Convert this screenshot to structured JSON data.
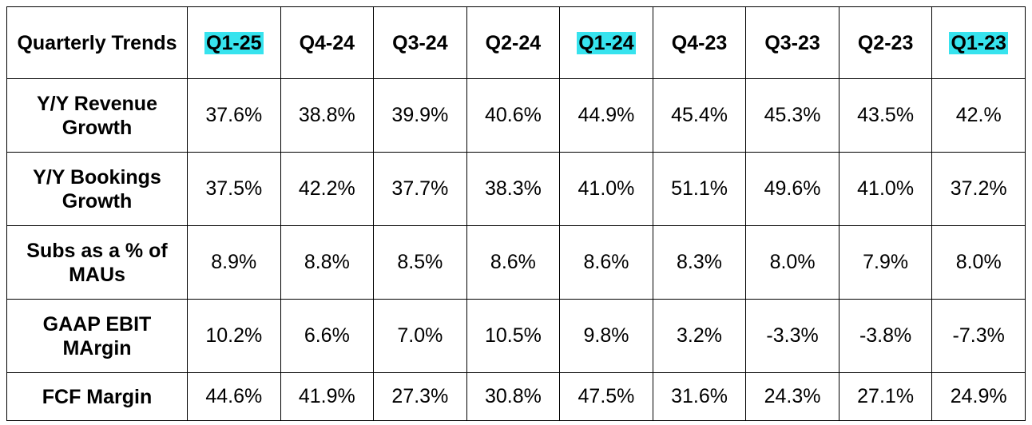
{
  "table": {
    "corner_label": "Quarterly Trends",
    "highlight_color": "#37e3ee",
    "columns": [
      {
        "label": "Q1-25",
        "highlighted": true
      },
      {
        "label": "Q4-24",
        "highlighted": false
      },
      {
        "label": "Q3-24",
        "highlighted": false
      },
      {
        "label": "Q2-24",
        "highlighted": false
      },
      {
        "label": "Q1-24",
        "highlighted": true
      },
      {
        "label": "Q4-23",
        "highlighted": false
      },
      {
        "label": "Q3-23",
        "highlighted": false
      },
      {
        "label": "Q2-23",
        "highlighted": false
      },
      {
        "label": "Q1-23",
        "highlighted": true
      }
    ],
    "rows": [
      {
        "label": "Y/Y Revenue Growth",
        "values": [
          "37.6%",
          "38.8%",
          "39.9%",
          "40.6%",
          "44.9%",
          "45.4%",
          "45.3%",
          "43.5%",
          "42.%"
        ]
      },
      {
        "label": "Y/Y Bookings Growth",
        "values": [
          "37.5%",
          "42.2%",
          "37.7%",
          "38.3%",
          "41.0%",
          "51.1%",
          "49.6%",
          "41.0%",
          "37.2%"
        ]
      },
      {
        "label": "Subs as a % of MAUs",
        "values": [
          "8.9%",
          "8.8%",
          "8.5%",
          "8.6%",
          "8.6%",
          "8.3%",
          "8.0%",
          "7.9%",
          "8.0%"
        ]
      },
      {
        "label": "GAAP EBIT MArgin",
        "values": [
          "10.2%",
          "6.6%",
          "7.0%",
          "10.5%",
          "9.8%",
          "3.2%",
          "-3.3%",
          "-3.8%",
          "-7.3%"
        ]
      },
      {
        "label": "FCF Margin",
        "values": [
          "44.6%",
          "41.9%",
          "27.3%",
          "30.8%",
          "47.5%",
          "31.6%",
          "24.3%",
          "27.1%",
          "24.9%"
        ]
      }
    ]
  }
}
